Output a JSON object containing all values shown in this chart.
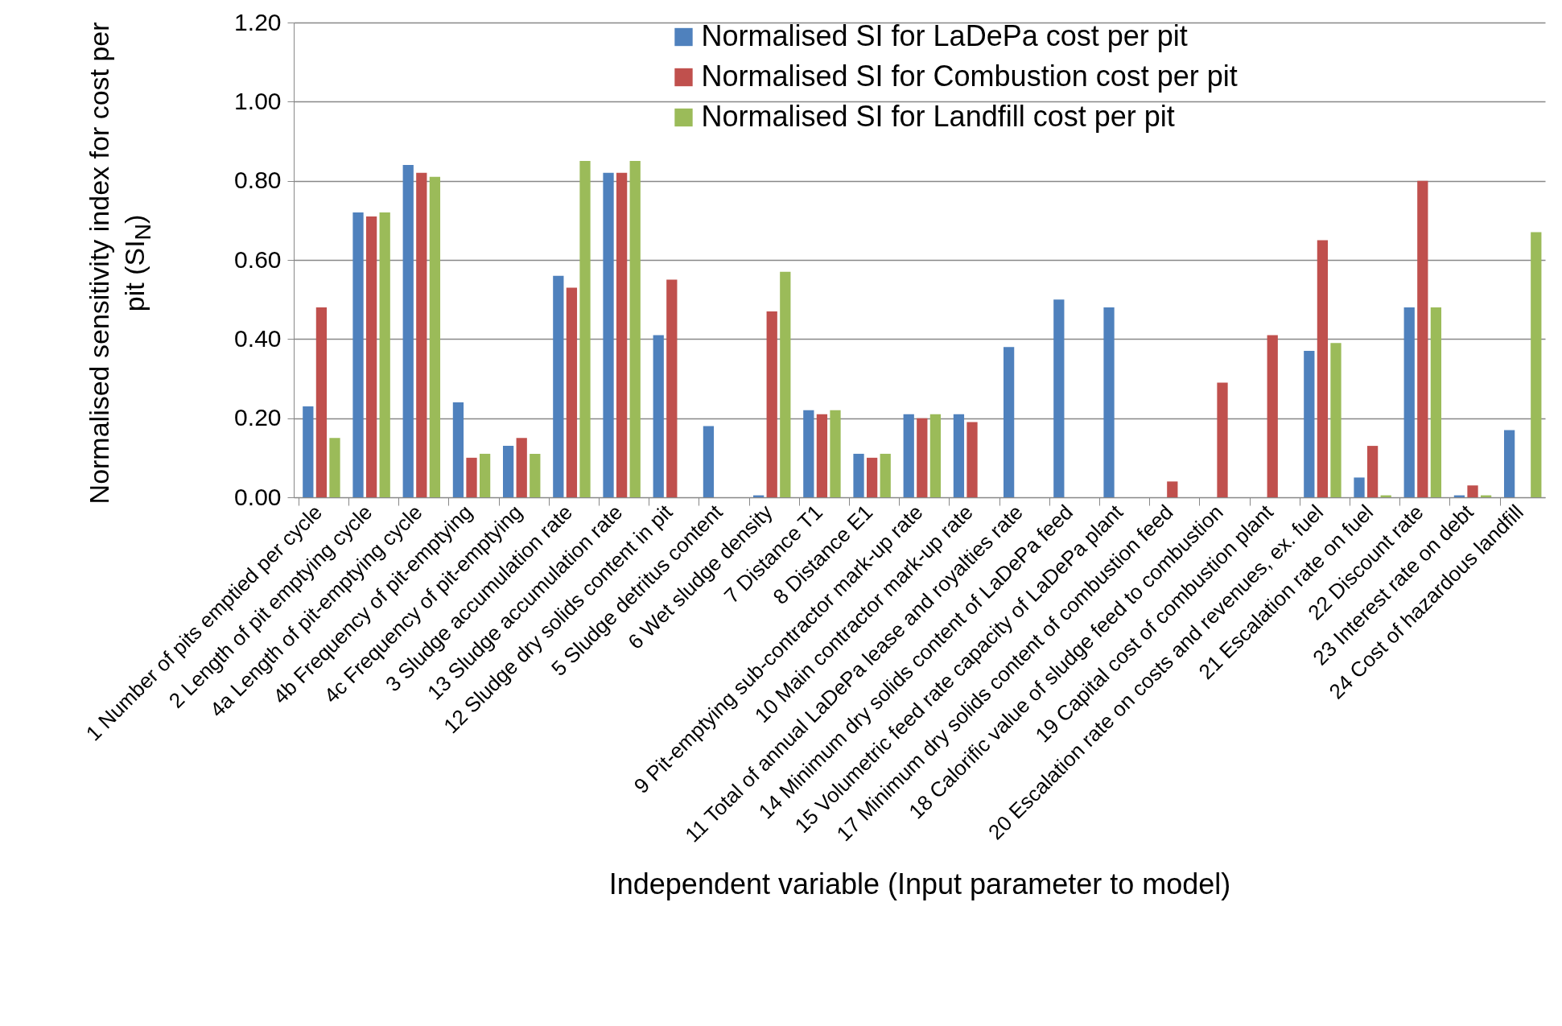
{
  "chart_data": {
    "type": "bar",
    "categories": [
      "1 Number of pits emptied per cycle",
      "2 Length of pit emptying cycle",
      "4a Length of pit-emptying cycle",
      "4b Frequency of pit-emptying",
      "4c Frequency of pit-emptying",
      "3 Sludge accumulation rate",
      "13 Sludge accumulation rate",
      "12 Sludge dry solids content in pit",
      "5 Sludge detritus content",
      "6 Wet sludge density",
      "7 Distance T1",
      "8 Distance E1",
      "9 Pit-emptying sub-contractor mark-up rate",
      "10 Main contractor mark-up rate",
      "11 Total of annual LaDePa lease and royalties rate",
      "14 Minimum dry solids content of LaDePa feed",
      "15 Volumetric feed rate capacity of LaDePa plant",
      "17 Minimum dry solids content of combustion feed",
      "18 Calorific value of sludge feed to combustion",
      "19 Capital cost of combustion plant",
      "20 Escalation rate on costs and revenues, ex. fuel",
      "21 Escalation rate on fuel",
      "22 Discount rate",
      "23 Interest rate on debt",
      "24 Cost of hazardous landfill"
    ],
    "series": [
      {
        "name": "Normalised SI for LaDePa cost per pit",
        "color": "#4f81bd",
        "values": [
          0.23,
          0.72,
          0.84,
          0.24,
          0.13,
          0.56,
          0.82,
          0.41,
          0.18,
          0.005,
          0.22,
          0.11,
          0.21,
          0.21,
          0.38,
          0.5,
          0.48,
          null,
          null,
          null,
          0.37,
          0.05,
          0.48,
          0.005,
          0.17
        ]
      },
      {
        "name": "Normalised SI for Combustion cost per pit",
        "color": "#c0504d",
        "values": [
          0.48,
          0.71,
          0.82,
          0.1,
          0.15,
          0.53,
          0.82,
          0.55,
          null,
          0.47,
          0.21,
          0.1,
          0.2,
          0.19,
          null,
          null,
          null,
          0.04,
          0.29,
          0.41,
          0.65,
          0.13,
          0.8,
          0.03,
          null
        ]
      },
      {
        "name": "Normalised SI for Landfill cost per pit",
        "color": "#9bbb59",
        "values": [
          0.15,
          0.72,
          0.81,
          0.11,
          0.11,
          0.85,
          0.85,
          null,
          null,
          0.57,
          0.22,
          0.11,
          0.21,
          null,
          null,
          null,
          null,
          null,
          null,
          null,
          0.39,
          0.005,
          0.48,
          0.005,
          0.67
        ]
      }
    ],
    "xlabel": "Independent variable (Input parameter to model)",
    "ylabel": "Normalised sensitivity index for cost per pit  (SI$_{N}$)",
    "ylim": [
      0,
      1.2
    ],
    "yticks": [
      {
        "value": 0,
        "label": "0.00"
      },
      {
        "value": 0.2,
        "label": "0.20"
      },
      {
        "value": 0.4,
        "label": "0.40"
      },
      {
        "value": 0.6,
        "label": "0.60"
      },
      {
        "value": 0.8,
        "label": "0.80"
      },
      {
        "value": 1.0,
        "label": "1.00"
      },
      {
        "value": 1.2,
        "label": "1.20"
      }
    ],
    "grid": "y",
    "legend": "top"
  }
}
